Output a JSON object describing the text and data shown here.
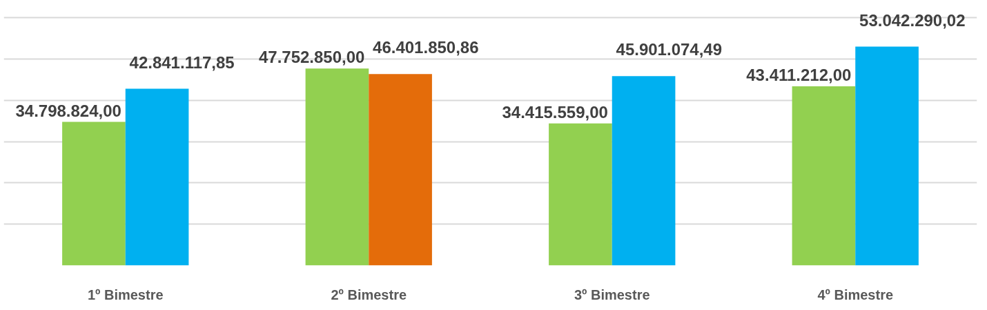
{
  "chart_data": {
    "type": "bar",
    "categories": [
      "1º Bimestre",
      "2º Bimestre",
      "3º Bimestre",
      "4º Bimestre"
    ],
    "series": [
      {
        "colors": [
          "#92d050",
          "#92d050",
          "#92d050",
          "#92d050"
        ],
        "values": [
          34798824.0,
          47752850.0,
          34415559.0,
          43411212.0
        ],
        "value_labels": [
          "34.798.824,00",
          "47.752.850,00",
          "34.415.559,00",
          "43.411.212,00"
        ]
      },
      {
        "colors": [
          "#00b0f0",
          "#e46c0a",
          "#00b0f0",
          "#00b0f0"
        ],
        "values": [
          42841117.85,
          46401850.86,
          45901074.49,
          53042290.02
        ],
        "value_labels": [
          "42.841.117,85",
          "46.401.850,86",
          "45.901.074,49",
          "53.042.290,02"
        ]
      }
    ],
    "grid": "y",
    "tick_labels": "x"
  }
}
